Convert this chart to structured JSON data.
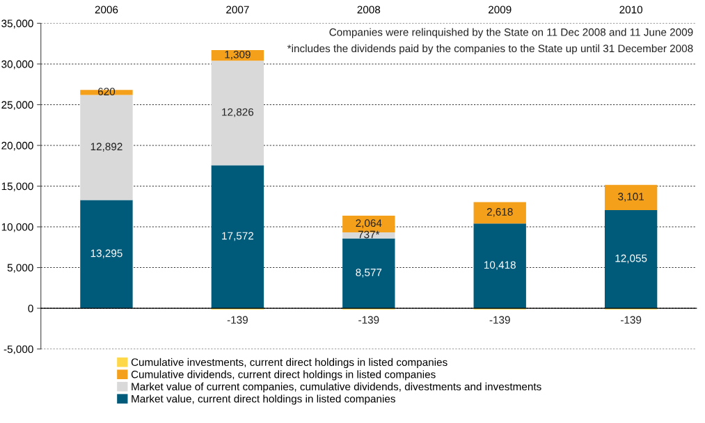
{
  "chart_data": {
    "type": "bar",
    "stacked": true,
    "categories": [
      "2006",
      "2007",
      "2008",
      "2009",
      "2010"
    ],
    "series": [
      {
        "name": "Market value, current direct holdings in listed companies",
        "color": "#005a7a",
        "values": [
          13295,
          17572,
          8577,
          10418,
          12055
        ],
        "value_labels": [
          "13,295",
          "17,572",
          "8,577",
          "10,418",
          "12,055"
        ]
      },
      {
        "name": "Market value of current companies, cumulative dividends, divestments and investments",
        "color": "#d9d9d9",
        "values": [
          12892,
          12826,
          737,
          null,
          null
        ],
        "value_labels": [
          "12,892",
          "12,826",
          "737*",
          null,
          null
        ]
      },
      {
        "name": "Cumulative dividends, current direct holdings in listed companies",
        "color": "#f5a01a",
        "values": [
          620,
          1309,
          2064,
          2618,
          3101
        ],
        "value_labels": [
          "620",
          "1,309",
          "2,064",
          "2,618",
          "3,101"
        ]
      },
      {
        "name": "Cumulative investments, current direct holdings in listed companies",
        "color": "#ffd84a",
        "values": [
          null,
          -139,
          -139,
          -139,
          -139
        ],
        "value_labels": [
          null,
          "-139",
          "-139",
          "-139",
          "-139"
        ]
      }
    ],
    "ylim": [
      -5000,
      35000
    ],
    "yticks": [
      {
        "value": -5000,
        "label": "-5,000"
      },
      0,
      {
        "value": 5000,
        "label": "5,000"
      },
      {
        "value": 10000,
        "label": "10,000"
      },
      {
        "value": 15000,
        "label": "15,000"
      },
      {
        "value": 20000,
        "label": "20,000"
      },
      {
        "value": 25000,
        "label": "25,000"
      },
      {
        "value": 30000,
        "label": "30,000"
      },
      {
        "value": 35000,
        "label": "35,000"
      }
    ],
    "grid": "y",
    "legend": "bottom",
    "annotations": [
      "Companies were relinquished by the State on 11 Dec 2008 and 11 June 2009",
      "*includes the dividends paid by the companies to the State up until 31 December 2008"
    ]
  }
}
